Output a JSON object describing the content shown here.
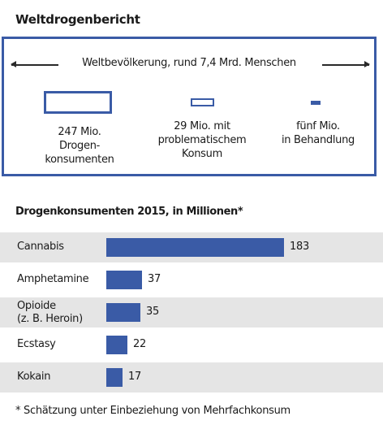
{
  "title": "Weltdrogenbericht",
  "world_population_label": "Weltbevölkerung, rund 7,4 Mrd. Menschen",
  "groups": [
    {
      "label": "247 Mio.\nDrogen-\nkonsumenten",
      "value_millions": 247
    },
    {
      "label": "29 Mio. mit\nproblematischem\nKonsum",
      "value_millions": 29
    },
    {
      "label": "fünf Mio.\nin Behandlung",
      "value_millions": 5
    }
  ],
  "colors": {
    "accent": "#3a5ba6",
    "row_shade": "#e5e5e5",
    "text": "#1a1a1a"
  },
  "chart_data": {
    "type": "bar",
    "orientation": "horizontal",
    "title": "Drogenkonsumenten 2015, in Millionen*",
    "categories": [
      "Cannabis",
      "Amphetamine",
      "Opioide\n(z. B. Heroin)",
      "Ecstasy",
      "Kokain"
    ],
    "values": [
      183,
      37,
      35,
      22,
      17
    ],
    "value_labels": [
      "183",
      "37",
      "35",
      "22",
      "17"
    ],
    "xlim": [
      0,
      183
    ],
    "grid": false,
    "legend": "none"
  },
  "footnote": "* Schätzung unter Einbeziehung von Mehrfachkonsum"
}
